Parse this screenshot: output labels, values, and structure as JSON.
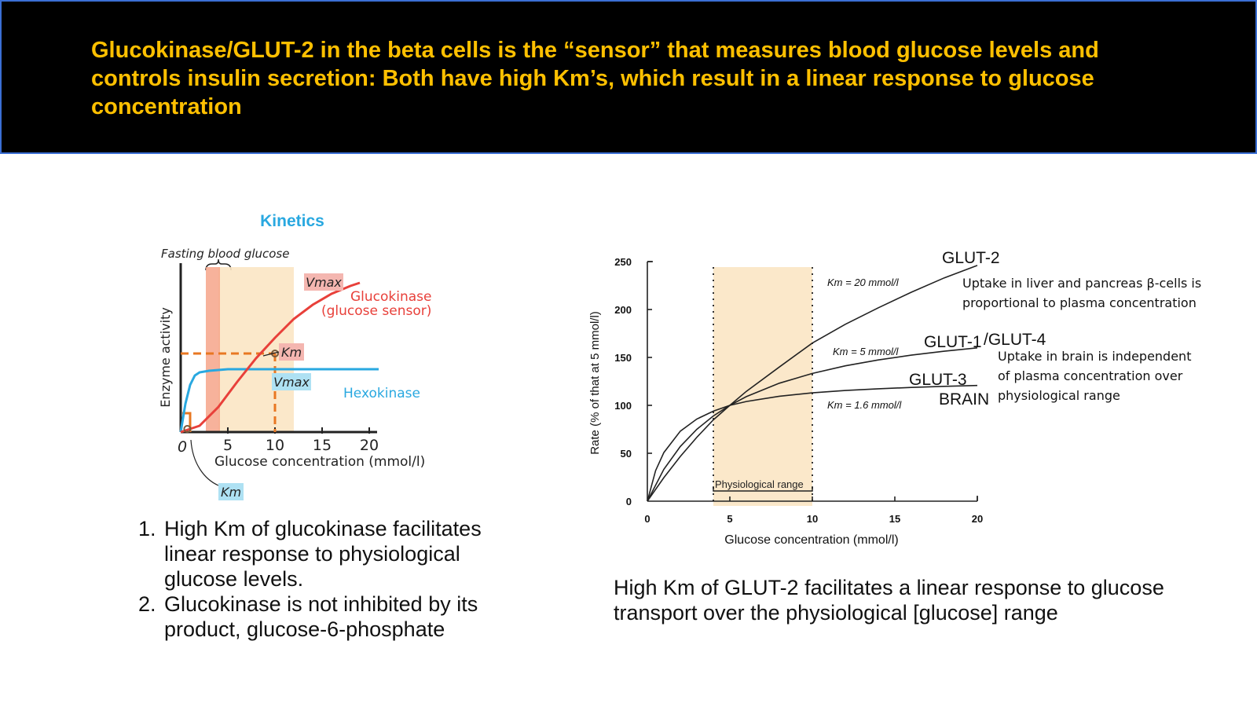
{
  "header": {
    "title": "Glucokinase/GLUT-2 in the beta cells is the “sensor” that measures blood glucose levels and controls insulin secretion: Both have high Km’s, which result in a linear response to glucose concentration"
  },
  "colors": {
    "header_bg": "#000000",
    "header_text": "#ffc000",
    "kinetics_title": "#29a8e0",
    "glucokinase": "#e8403a",
    "hexokinase": "#29a8e0",
    "km_dashed": "#e87722",
    "physio_band": "#fbe6c4",
    "fasting_band": "#f6a58a"
  },
  "chart_data": [
    {
      "type": "line",
      "title": "Kinetics",
      "xlabel": "Glucose concentration (mmol/l)",
      "ylabel": "Enzyme activity",
      "xticks": [
        "0",
        "5",
        "10",
        "15",
        "20"
      ],
      "xlim": [
        0,
        25
      ],
      "ylim": [
        0,
        1.1
      ],
      "grid": false,
      "bands": {
        "fasting_label": "Fasting blood glucose",
        "fasting_range": [
          3,
          5
        ],
        "physiological_range": [
          4,
          12
        ]
      },
      "series": [
        {
          "name": "Glucokinase (glucose sensor)",
          "line1": "Glucokinase",
          "line2": "(glucose sensor)",
          "color": "#e8403a",
          "x": [
            0,
            2,
            4,
            6,
            8,
            10,
            12,
            14,
            16,
            18,
            19
          ],
          "y": [
            0,
            0.04,
            0.16,
            0.32,
            0.47,
            0.6,
            0.72,
            0.81,
            0.88,
            0.93,
            0.95
          ]
        },
        {
          "name": "Hexokinase",
          "color": "#29a8e0",
          "x": [
            0,
            0.5,
            1,
            1.5,
            2,
            3,
            5,
            10,
            15,
            21
          ],
          "y": [
            0,
            0.18,
            0.3,
            0.36,
            0.38,
            0.39,
            0.4,
            0.4,
            0.4,
            0.4
          ]
        }
      ],
      "annotations": {
        "vmax_gk": "Vmax",
        "km_gk": "Km",
        "vmax_hk": "Vmax",
        "km_hk": "Km",
        "origin": "0"
      },
      "km_glucokinase_x": 10,
      "km_glucokinase_y": 0.5,
      "km_hexokinase_x": 0.1,
      "km_hexokinase_y": 0.12
    },
    {
      "type": "line",
      "title": "",
      "xlabel": "Glucose concentration (mmol/l)",
      "ylabel": "Rate (% of that at 5 mmol/l)",
      "xticks": [
        0,
        5,
        10,
        15,
        20
      ],
      "yticks": [
        0,
        50,
        100,
        150,
        200,
        250
      ],
      "xlim": [
        0,
        20
      ],
      "ylim": [
        0,
        250
      ],
      "grid": false,
      "physiological_range": [
        4,
        10
      ],
      "physiological_label": "Physiological range",
      "series": [
        {
          "name": "GLUT-2",
          "km_label": "Km = 20 mmol/l",
          "x": [
            0,
            1,
            2,
            3,
            4,
            5,
            6,
            8,
            10,
            12,
            14,
            16,
            18,
            20
          ],
          "y": [
            0,
            24.6,
            46.7,
            66.7,
            84.8,
            100,
            114.6,
            140,
            165,
            184.6,
            201.8,
            218,
            233,
            246
          ]
        },
        {
          "name": "GLUT-1/GLUT-4",
          "km_label": "Km = 5 mmol/l",
          "x": [
            0,
            1,
            2,
            3,
            4,
            5,
            6,
            8,
            10,
            12,
            14,
            16,
            18,
            20
          ],
          "y": [
            0,
            33.3,
            57.1,
            75,
            88.9,
            100,
            109.1,
            123.1,
            133.3,
            141.2,
            147.4,
            152.4,
            156.5,
            160
          ]
        },
        {
          "name": "GLUT-3",
          "km_label": "Km = 1.6 mmol/l",
          "x": [
            0,
            0.5,
            1,
            2,
            3,
            4,
            5,
            6,
            8,
            10,
            12,
            14,
            16,
            18,
            20
          ],
          "y": [
            0,
            31.9,
            50.7,
            73.1,
            85.7,
            93.9,
            100,
            104,
            109.5,
            113,
            115.5,
            117.3,
            118.7,
            119.8,
            120.7
          ]
        }
      ],
      "curve_labels": {
        "glut2": "GLUT-2",
        "glut1": "GLUT-1",
        "glut4": "/GLUT-4",
        "glut3": "GLUT-3",
        "brain": "BRAIN"
      },
      "notes": {
        "glut2_line1": "Uptake in liver and pancreas β-cells is",
        "glut2_line2": "proportional to plasma concentration",
        "glut1_line1": "Uptake in brain is independent",
        "glut1_line2": "of plasma concentration over",
        "glut1_line3": "physiological range"
      }
    }
  ],
  "left_notes": [
    {
      "num": "1.",
      "text": "High Km of glucokinase facilitates linear response to physiological glucose levels."
    },
    {
      "num": "2.",
      "text": "Glucokinase is not inhibited by its product, glucose-6-phosphate"
    }
  ],
  "right_caption": "High Km of GLUT-2 facilitates a linear response to glucose transport over the physiological [glucose] range"
}
